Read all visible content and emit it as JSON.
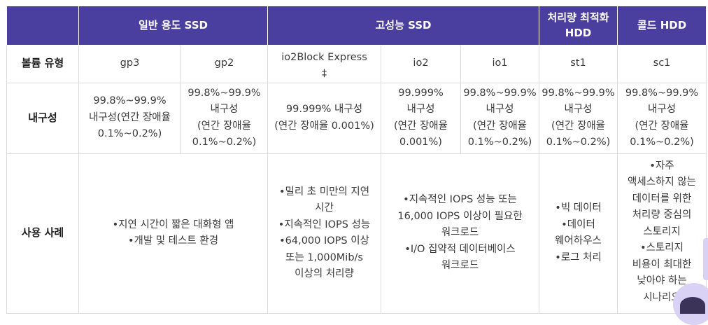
{
  "header": {
    "group_general": "일반 용도 SSD",
    "group_high": "고성능 SSD",
    "group_throughput": "처리량 최적화\nHDD",
    "group_cold": "콜드 HDD"
  },
  "rows": {
    "type_label": "볼륨 유형",
    "durability_label": "내구성",
    "usecase_label": "사용 사례"
  },
  "types": {
    "gp3": "gp3",
    "gp2": "gp2",
    "io2be": "io2Block Express\n‡",
    "io2": "io2",
    "io1": "io1",
    "st1": "st1",
    "sc1": "sc1"
  },
  "durability": {
    "gp3": "99.8%~99.9%\n내구성(연간 장애율\n0.1%~0.2%)",
    "gp2": "99.8%~99.9%\n내구성\n(연간 장애율\n0.1%~0.2%)",
    "io2be": "99.999% 내구성\n(연간 장애율 0.001%)",
    "io2": "99.999%\n내구성\n(연간 장애율\n0.001%)",
    "io1": "99.8%~99.9%\n내구성\n(연간 장애율\n0.1%~0.2%)",
    "st1": "99.8%~99.9%\n내구성\n(연간 장애율\n0.1%~0.2%)",
    "sc1": "99.8%~99.9%\n내구성\n(연간 장애율\n0.1%~0.2%)"
  },
  "usecases": {
    "general": "•지연 시간이 짧은 대화형 앱\n•개발 및 테스트 환경",
    "io2be": "•밀리 초 미만의 지연\n시간\n•지속적인 IOPS 성능\n•64,000 IOPS 이상\n또는 1,000Mib/s\n이상의 처리량",
    "io2_io1": "•지속적인 IOPS 성능 또는\n16,000 IOPS 이상이 필요한\n워크로드\n•I/O 집약적 데이터베이스\n워크로드",
    "st1": "•빅 데이터\n•데이터\n웨어하우스\n•로그 처리",
    "sc1": "•자주\n액세스하지 않는\n데이터를 위한\n처리량 중심의\n스토리지\n•스토리지\n비용이 최대한\n낮아야 하는\n시나리오"
  },
  "colors": {
    "header_bg": "#4a3f9e",
    "header_text": "#ffffff",
    "border": "#dcdce0",
    "text": "#3a3a3a"
  }
}
